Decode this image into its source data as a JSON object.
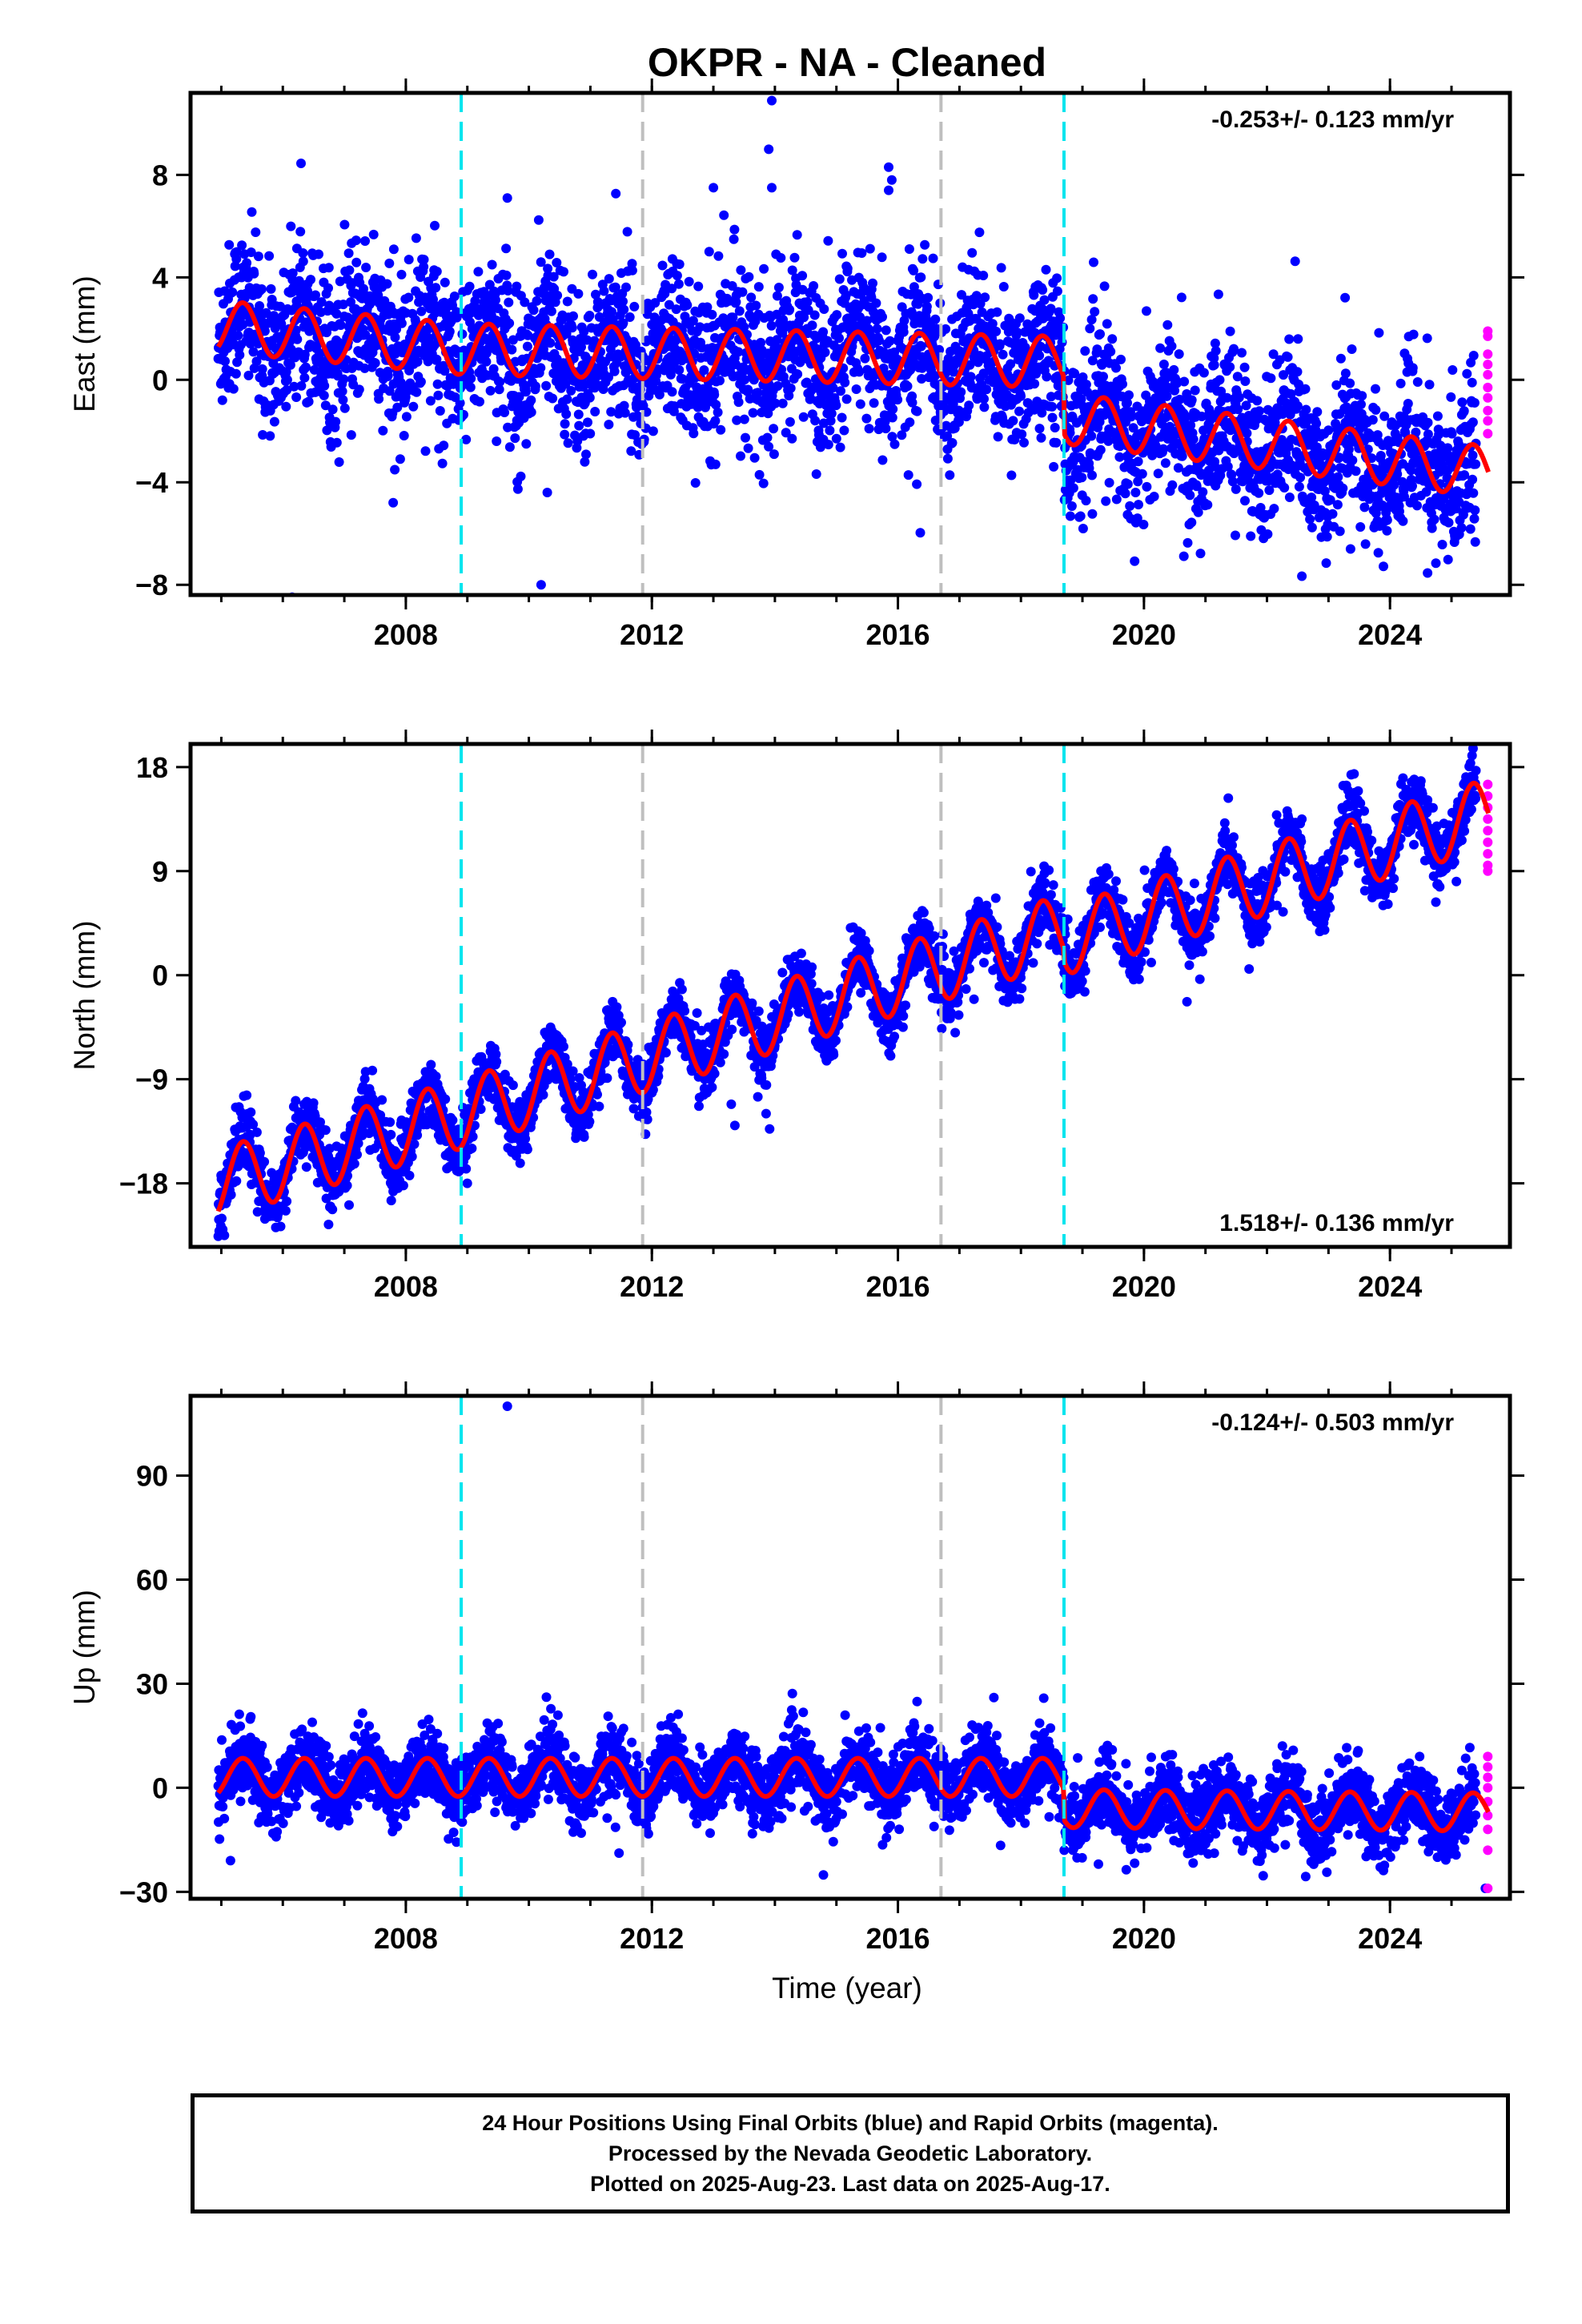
{
  "title": "OKPR  - NA - Cleaned",
  "xlabel": "Time (year)",
  "colors": {
    "final_orbits": "#0000ff",
    "rapid_orbits": "#ff00ff",
    "model": "#ff0000",
    "equipment_change": "#00e5ee",
    "other_offset": "#bfbfbf"
  },
  "footer": {
    "line1": "24 Hour Positions Using Final Orbits (blue) and Rapid Orbits (magenta).",
    "line2": "Processed by the Nevada Geodetic Laboratory.",
    "line3": "Plotted on 2025-Aug-23. Last data on 2025-Aug-17."
  },
  "chart_data": [
    {
      "type": "scatter",
      "component": "east",
      "ylabel": "East (mm)",
      "rate": "-0.253+/- 0.123 mm/yr",
      "rate_position": "top-right",
      "xlim": [
        2004.5,
        2025.95
      ],
      "ylim": [
        -8.4,
        11.2
      ],
      "xticks": [
        2008,
        2012,
        2016,
        2020,
        2024
      ],
      "yticks": [
        -8,
        -4,
        0,
        4,
        8
      ],
      "vlines_cyan": [
        2008.9,
        2018.7
      ],
      "vlines_gray": [
        2011.85,
        2016.7
      ],
      "data_range": [
        2004.95,
        2025.6
      ],
      "rapid_range": [
        2025.4,
        2025.62
      ],
      "model_knots": [
        [
          2004.95,
          2.1
        ],
        [
          2008.9,
          1.2
        ],
        [
          2018.69,
          0.7
        ],
        [
          2018.71,
          -1.5
        ],
        [
          2025.6,
          -3.6
        ]
      ],
      "seasonal_amplitude": 1.0,
      "noise": 1.5,
      "outliers": [
        [
          2013.95,
          10.9
        ],
        [
          2013.9,
          9.0
        ],
        [
          2013.95,
          7.5
        ],
        [
          2013.0,
          7.5
        ],
        [
          2015.85,
          8.3
        ],
        [
          2015.9,
          7.8
        ],
        [
          2015.85,
          7.4
        ],
        [
          2009.65,
          7.1
        ],
        [
          2010.2,
          -8.0
        ],
        [
          2010.3,
          -4.4
        ]
      ],
      "rapid_values": [
        1.9,
        1.7,
        1.0,
        0.6,
        0.2,
        -0.3,
        -0.7,
        -1.2,
        -1.6,
        -2.1
      ]
    },
    {
      "type": "scatter",
      "component": "north",
      "ylabel": "North (mm)",
      "rate": "1.518+/- 0.136 mm/yr",
      "rate_position": "bottom-right",
      "xlim": [
        2004.5,
        2025.95
      ],
      "ylim": [
        -23.5,
        20.0
      ],
      "xticks": [
        2008,
        2012,
        2016,
        2020,
        2024
      ],
      "yticks": [
        -18,
        -9,
        0,
        9,
        18
      ],
      "vlines_cyan": [
        2008.9,
        2018.7
      ],
      "vlines_gray": [
        2011.85,
        2016.7
      ],
      "data_range": [
        2004.95,
        2025.6
      ],
      "rapid_range": [
        2025.4,
        2025.62
      ],
      "model_knots": [
        [
          2004.95,
          -18.0
        ],
        [
          2008.9,
          -12.0
        ],
        [
          2018.69,
          4.0
        ],
        [
          2018.71,
          3.0
        ],
        [
          2025.6,
          14.0
        ]
      ],
      "seasonal_amplitude": 3.0,
      "noise": 1.3,
      "outliers": [
        [
          2020.7,
          -2.3
        ],
        [
          2013.35,
          -13.0
        ],
        [
          2009.0,
          -18.0
        ],
        [
          2005.05,
          -22.5
        ]
      ],
      "rapid_values": [
        16.5,
        15.5,
        14.5,
        13.5,
        12.5,
        11.5,
        10.5,
        9.5,
        9.0
      ]
    },
    {
      "type": "scatter",
      "component": "up",
      "ylabel": "Up (mm)",
      "rate": "-0.124+/- 0.503 mm/yr",
      "rate_position": "top-right",
      "xlim": [
        2004.5,
        2025.95
      ],
      "ylim": [
        -32,
        113
      ],
      "xticks": [
        2008,
        2012,
        2016,
        2020,
        2024
      ],
      "yticks": [
        -30,
        0,
        30,
        60,
        90
      ],
      "vlines_cyan": [
        2008.9,
        2018.7
      ],
      "vlines_gray": [
        2011.85,
        2016.7
      ],
      "data_range": [
        2004.95,
        2025.6
      ],
      "rapid_range": [
        2025.4,
        2025.62
      ],
      "model_knots": [
        [
          2004.95,
          3.0
        ],
        [
          2018.69,
          3.0
        ],
        [
          2018.71,
          -6.0
        ],
        [
          2025.6,
          -7.0
        ]
      ],
      "seasonal_amplitude": 5.5,
      "noise": 5.0,
      "outliers": [
        [
          2009.65,
          110.0
        ],
        [
          2005.15,
          -21.0
        ],
        [
          2025.55,
          -29.0
        ]
      ],
      "rapid_values": [
        9.0,
        6.0,
        3.0,
        0.0,
        -4.0,
        -8.0,
        -12.0,
        -18.0,
        -29.0
      ]
    }
  ]
}
